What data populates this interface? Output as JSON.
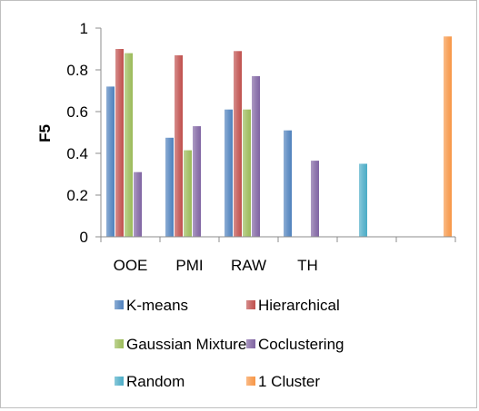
{
  "chart_data": {
    "type": "bar",
    "ylabel": "F5",
    "ylim": [
      0,
      1
    ],
    "yticks": [
      "0",
      "0.2",
      "0.4",
      "0.6",
      "0.8",
      "1"
    ],
    "grid": false,
    "legend_position": "bottom",
    "categories": [
      "OOE",
      "PMI",
      "RAW",
      "TH",
      "",
      ""
    ],
    "series": [
      {
        "name": "K-means",
        "color": "#4f81bd",
        "values": [
          0.72,
          0.475,
          0.61,
          0.51,
          null,
          null
        ]
      },
      {
        "name": "Hierarchical",
        "color": "#c0504d",
        "values": [
          0.9,
          0.87,
          0.89,
          null,
          null,
          null
        ]
      },
      {
        "name": "Gaussian Mixture",
        "color": "#9bbb59",
        "values": [
          0.88,
          0.415,
          0.61,
          null,
          null,
          null
        ]
      },
      {
        "name": "Coclustering",
        "color": "#8064a2",
        "values": [
          0.31,
          0.53,
          0.77,
          0.365,
          null,
          null
        ]
      },
      {
        "name": "Random",
        "color": "#4bacc6",
        "values": [
          null,
          null,
          null,
          null,
          0.35,
          null
        ]
      },
      {
        "name": "1 Cluster",
        "color": "#f79646",
        "values": [
          null,
          null,
          null,
          null,
          null,
          0.96
        ]
      }
    ]
  }
}
